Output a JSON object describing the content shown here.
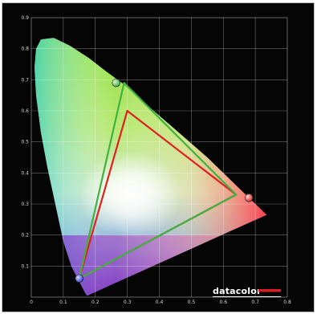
{
  "chart_data": {
    "type": "scatter",
    "title": "",
    "xlabel": "",
    "ylabel": "",
    "xlim": [
      0,
      0.8
    ],
    "ylim": [
      0,
      0.9
    ],
    "x_ticks": [
      "0",
      "0.1",
      "0.2",
      "0.3",
      "0.4",
      "0.5",
      "0.6",
      "0.7",
      "0.8"
    ],
    "y_ticks": [
      "0.1",
      "0.2",
      "0.3",
      "0.4",
      "0.5",
      "0.6",
      "0.7",
      "0.8",
      "0.9"
    ],
    "grid": true,
    "series": [
      {
        "color": "#e02020",
        "closed": true,
        "points": [
          {
            "x": 0.64,
            "y": 0.33
          },
          {
            "x": 0.3,
            "y": 0.6
          },
          {
            "x": 0.15,
            "y": 0.06
          }
        ]
      },
      {
        "color": "#3fb23f",
        "closed": true,
        "points": [
          {
            "x": 0.64,
            "y": 0.33
          },
          {
            "x": 0.29,
            "y": 0.69
          },
          {
            "x": 0.15,
            "y": 0.06
          }
        ]
      }
    ],
    "markers": [
      {
        "name": "red-primary",
        "x": 0.68,
        "y": 0.32,
        "color": "#e32626"
      },
      {
        "name": "green-primary",
        "x": 0.265,
        "y": 0.69,
        "color": "#3db43d"
      },
      {
        "name": "blue-primary",
        "x": 0.15,
        "y": 0.06,
        "color": "#2b3bd6"
      }
    ]
  },
  "brand": {
    "text": "datacolor",
    "accent_color": "#d81e2a"
  }
}
